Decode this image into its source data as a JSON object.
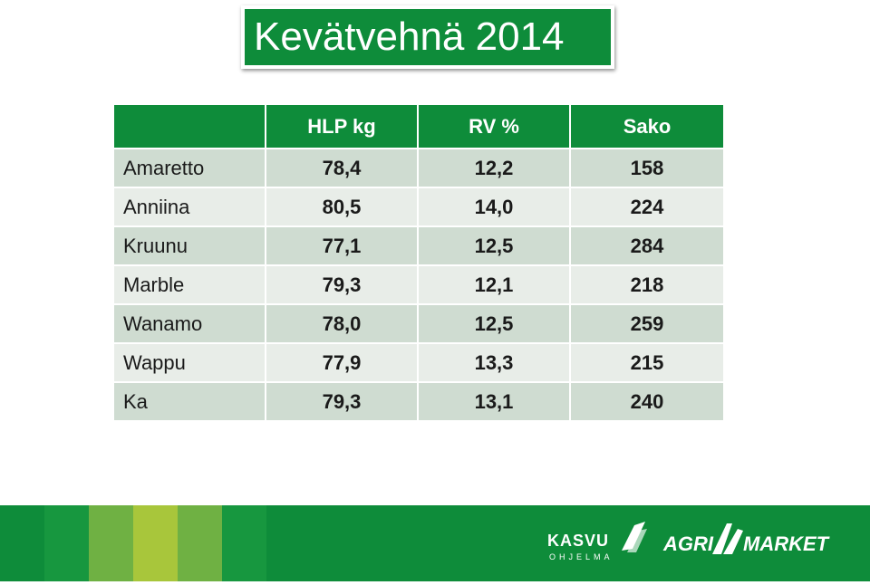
{
  "title": "Kevätvehnä 2014",
  "table": {
    "headers": [
      "",
      "HLP kg",
      "RV %",
      "Sako"
    ],
    "rows": [
      [
        "Amaretto",
        "78,4",
        "12,2",
        "158"
      ],
      [
        "Anniina",
        "80,5",
        "14,0",
        "224"
      ],
      [
        "Kruunu",
        "77,1",
        "12,5",
        "284"
      ],
      [
        "Marble",
        "79,3",
        "12,1",
        "218"
      ],
      [
        "Wanamo",
        "78,0",
        "12,5",
        "259"
      ],
      [
        "Wappu",
        "77,9",
        "13,3",
        "215"
      ],
      [
        "Ka",
        "79,3",
        "13,1",
        "240"
      ]
    ]
  },
  "footer": {
    "logo1_main": "KASVU",
    "logo1_sub": "OHJELMA",
    "logo2_left": "AGRI",
    "logo2_right": "MARKET"
  },
  "colors": {
    "brand_green": "#0e8c3a",
    "row_dark": "#cfdcd1",
    "row_light": "#e8ede8"
  }
}
